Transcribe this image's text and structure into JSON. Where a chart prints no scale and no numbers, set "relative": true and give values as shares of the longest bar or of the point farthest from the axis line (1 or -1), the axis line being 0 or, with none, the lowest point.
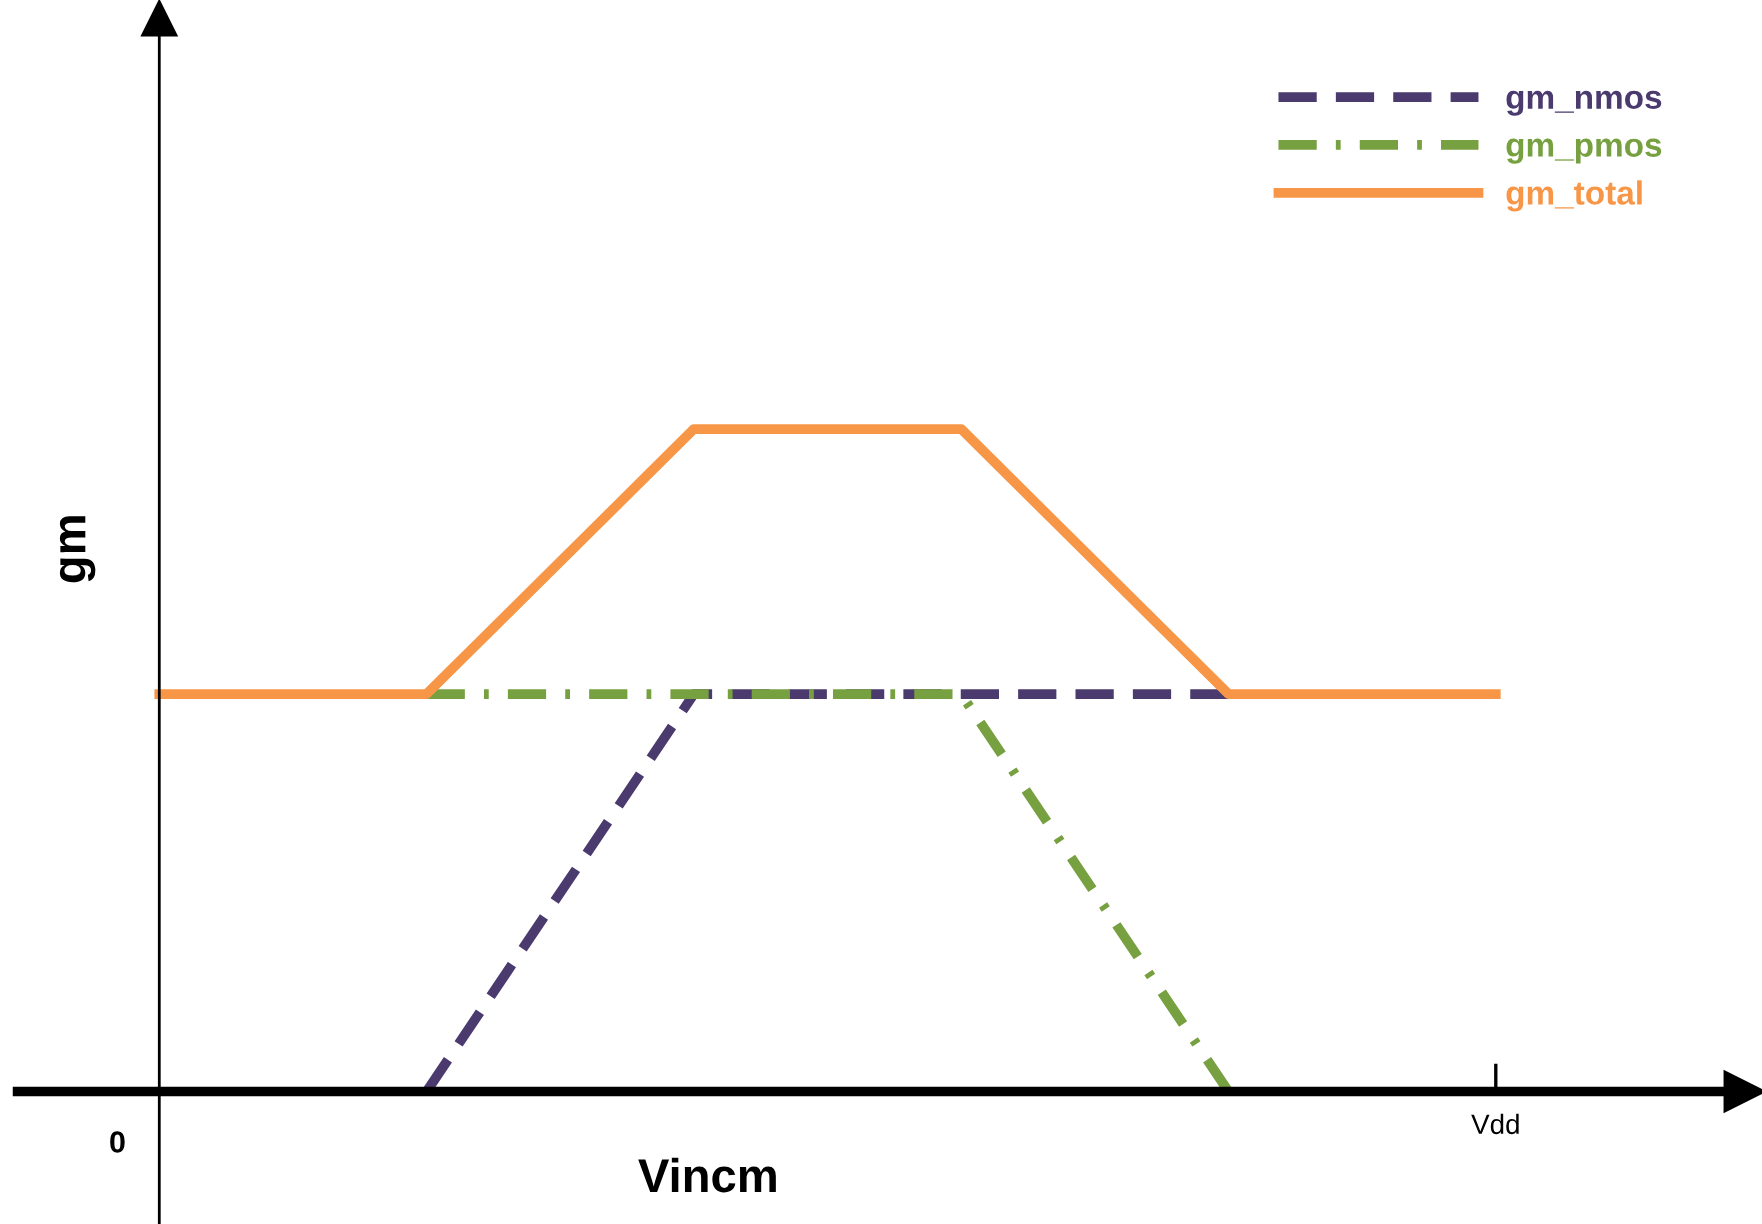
{
  "chart_data": {
    "type": "line",
    "relative": true,
    "xlabel": "Vincm",
    "ylabel": "gm",
    "categories": [
      "0",
      null,
      null,
      null,
      null,
      "Vdd"
    ],
    "series": [
      {
        "name": "gm_nmos",
        "color": "#4b3a6e",
        "line_style": "dashed",
        "values": [
          null,
          0,
          0.6,
          0.6,
          0.6,
          null
        ]
      },
      {
        "name": "gm_pmos",
        "color": "#77a040",
        "line_style": "dashdot",
        "values": [
          null,
          0.6,
          0.6,
          0.6,
          0,
          null
        ]
      },
      {
        "name": "gm_total",
        "color": "#f79646",
        "line_style": "solid",
        "values": [
          0.6,
          0.6,
          1,
          1,
          0.6,
          0.6
        ]
      }
    ],
    "legend": "top right",
    "grid": false,
    "marker": "none"
  }
}
